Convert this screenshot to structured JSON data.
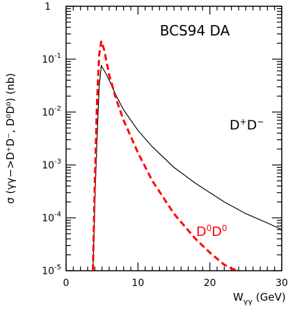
{
  "chart_data": {
    "type": "line",
    "title": "BCS94 DA",
    "xlabel": "W",
    "xlabel_sub": "γγ",
    "xlabel_unit": "(GeV)",
    "ylabel": "σ (γγ−>D⁺D⁻, D⁰D⁰) (nb)",
    "xlim": [
      0,
      30
    ],
    "ylim": [
      1e-05,
      1
    ],
    "yscale": "log",
    "grid": false,
    "x_ticks": [
      "0",
      "10",
      "20",
      "30"
    ],
    "y_ticks": [
      {
        "base": "10",
        "exp": "-5",
        "value": 1e-05
      },
      {
        "base": "10",
        "exp": "-4",
        "value": 0.0001
      },
      {
        "base": "10",
        "exp": "-3",
        "value": 0.001
      },
      {
        "base": "10",
        "exp": "-2",
        "value": 0.01
      },
      {
        "base": "10",
        "exp": "-1",
        "value": 0.1
      },
      {
        "base": "1",
        "exp": "",
        "value": 1
      }
    ],
    "series": [
      {
        "name": "D⁺D⁻",
        "color": "#000000",
        "style": "solid",
        "x": [
          3.74,
          4.0,
          4.3,
          4.6,
          4.9,
          5.5,
          6,
          7,
          8,
          10,
          12,
          15,
          18,
          20,
          22,
          25,
          28,
          30
        ],
        "y": [
          1e-05,
          0.0002,
          0.003,
          0.03,
          0.075,
          0.055,
          0.04,
          0.02,
          0.011,
          0.0045,
          0.0022,
          0.0009,
          0.00045,
          0.0003,
          0.0002,
          0.00012,
          8e-05,
          6e-05
        ]
      },
      {
        "name": "D⁰D⁰",
        "color": "#ff0000",
        "style": "dashed",
        "x": [
          3.73,
          4.0,
          4.3,
          4.6,
          4.9,
          5.3,
          5.7,
          6,
          7,
          8,
          10,
          12,
          15,
          18,
          20,
          22,
          23,
          24
        ],
        "y": [
          1e-05,
          0.0005,
          0.015,
          0.12,
          0.22,
          0.15,
          0.08,
          0.05,
          0.017,
          0.007,
          0.0017,
          0.0005,
          0.00012,
          4e-05,
          2.2e-05,
          1.3e-05,
          1.1e-05,
          1e-05
        ]
      }
    ],
    "labels": {
      "dplus": {
        "base": "D",
        "sup1": "+",
        "base2": "D",
        "sup2": "−"
      },
      "dzero": {
        "base": "D",
        "sup1": "0",
        "base2": "D",
        "sup2": "0"
      }
    }
  }
}
